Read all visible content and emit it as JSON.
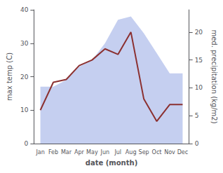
{
  "chart_data": {
    "type": "line",
    "categories": [
      "Jan",
      "Feb",
      "Mar",
      "Apr",
      "May",
      "Jun",
      "Jul",
      "Aug",
      "Sep",
      "Oct",
      "Nov",
      "Dec"
    ],
    "series": [
      {
        "type": "area",
        "color": "#c5cff0",
        "values": [
          17,
          17,
          19,
          23,
          25,
          30,
          37,
          38,
          33,
          27,
          21,
          21
        ]
      },
      {
        "type": "line",
        "color": "#8b3030",
        "axis": "y2",
        "values": [
          6,
          11,
          11.5,
          14,
          15,
          17,
          16,
          20,
          8,
          4,
          7,
          7
        ]
      }
    ],
    "xlabel": "date (month)",
    "ylabel": "max temp (C)",
    "y2label": "med. precipitation (kg/m2)",
    "ylim": [
      0,
      40
    ],
    "yticks": [
      0,
      10,
      20,
      30,
      40
    ],
    "y2lim": [
      0,
      24
    ],
    "y2ticks": [
      0,
      5,
      10,
      15,
      20
    ],
    "grid": false
  }
}
